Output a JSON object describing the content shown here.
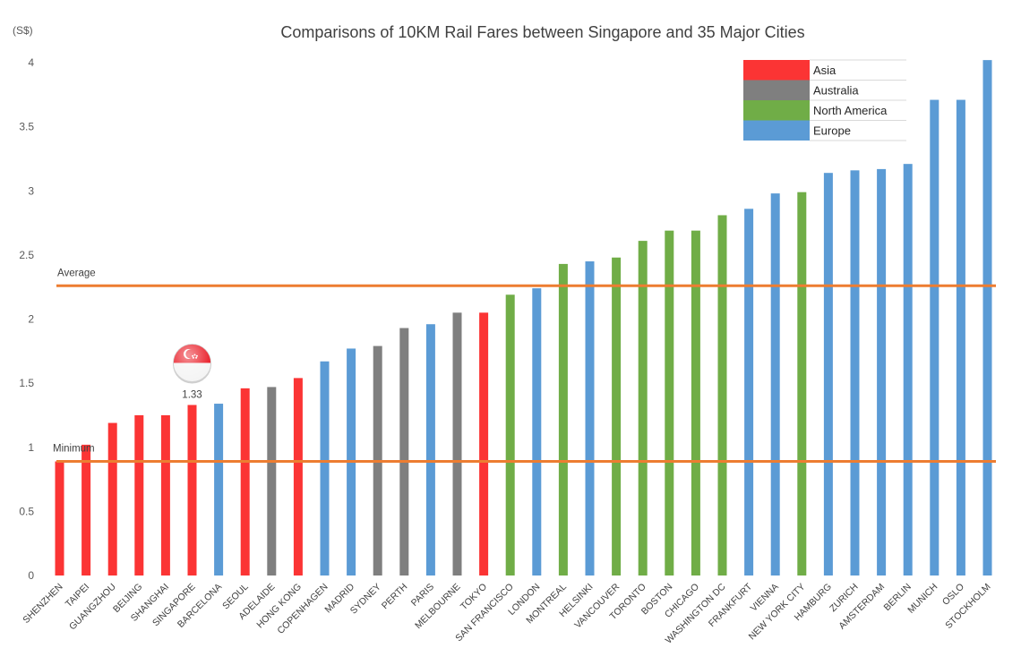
{
  "chart_data": {
    "type": "bar",
    "title": "Comparisons of 10KM Rail Fares between Singapore and 35 Major Cities",
    "unit_label": "(S$)",
    "ylim": [
      0,
      4
    ],
    "yticks": [
      "0",
      "0.5",
      "1",
      "1.5",
      "2",
      "2.5",
      "3",
      "3.5",
      "4"
    ],
    "categories": [
      "SHENZHEN",
      "TAIPEI",
      "GUANGZHOU",
      "BEIJING",
      "SHANGHAI",
      "SINGAPORE",
      "BARCELONA",
      "SEOUL",
      "ADELAIDE",
      "HONG KONG",
      "COPENHAGEN",
      "MADRID",
      "SYDNEY",
      "PERTH",
      "PARIS",
      "MELBOURNE",
      "TOKYO",
      "SAN FRANCISCO",
      "LONDON",
      "MONTREAL",
      "HELSINKI",
      "VANCOUVER",
      "TORONTO",
      "BOSTON",
      "CHICAGO",
      "WASHINGTON DC",
      "FRANKFURT",
      "VIENNA",
      "NEW YORK CITY",
      "HAMBURG",
      "ZURICH",
      "AMSTERDAM",
      "BERLIN",
      "MUNICH",
      "OSLO",
      "STOCKHOLM"
    ],
    "values": [
      0.89,
      1.02,
      1.19,
      1.25,
      1.25,
      1.33,
      1.34,
      1.46,
      1.47,
      1.54,
      1.67,
      1.77,
      1.79,
      1.93,
      1.96,
      2.05,
      2.05,
      2.19,
      2.24,
      2.43,
      2.45,
      2.48,
      2.61,
      2.69,
      2.69,
      2.81,
      2.86,
      2.98,
      2.99,
      3.14,
      3.16,
      3.17,
      3.21,
      3.71,
      3.71,
      4.02
    ],
    "regions": [
      "Asia",
      "Asia",
      "Asia",
      "Asia",
      "Asia",
      "Asia",
      "Europe",
      "Asia",
      "Australia",
      "Asia",
      "Europe",
      "Europe",
      "Australia",
      "Australia",
      "Europe",
      "Australia",
      "Asia",
      "North America",
      "Europe",
      "North America",
      "Europe",
      "North America",
      "North America",
      "North America",
      "North America",
      "North America",
      "Europe",
      "Europe",
      "North America",
      "Europe",
      "Europe",
      "Europe",
      "Europe",
      "Europe",
      "Europe",
      "Europe"
    ],
    "legend": {
      "position": "top-right",
      "items": [
        {
          "name": "Asia",
          "color": "#fb3434"
        },
        {
          "name": "Australia",
          "color": "#7f7f7f"
        },
        {
          "name": "North America",
          "color": "#70ad47"
        },
        {
          "name": "Europe",
          "color": "#5b9bd5"
        }
      ]
    },
    "reference_lines": [
      {
        "label": "Average",
        "value": 2.26,
        "color": "#ed7d31"
      },
      {
        "label": "Minimum",
        "value": 0.89,
        "color": "#ed7d31"
      }
    ],
    "highlight": {
      "category": "SINGAPORE",
      "label": "1.33",
      "icon": "singapore-flag-icon"
    },
    "grid": false
  }
}
